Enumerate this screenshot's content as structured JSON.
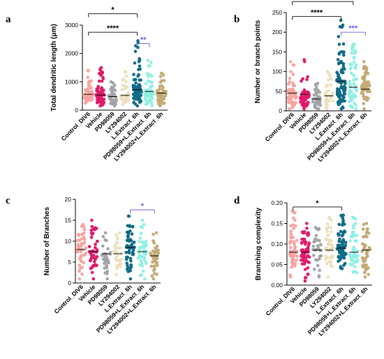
{
  "colors": {
    "Control_DIV6": "#f6a5a0",
    "Vehicle": "#e0196a",
    "PD98059": "#a3a4a8",
    "LY294002": "#ece0bc",
    "L.Extract_6h": "#0f6b87",
    "PD98059+L.Extract_6h": "#8ff0e2",
    "LY294002+L.Extract_6h": "#c4aa76",
    "sig_black": "#000000",
    "sig_blue": "#6a5ae8"
  },
  "chart_data": [
    {
      "panel": "a",
      "type": "scatter",
      "ylabel": "Total dendritic length (μm)",
      "ylim": [
        0,
        3000
      ],
      "yticks": [
        0,
        1000,
        2000,
        3000
      ],
      "categories": [
        "Control_DIV6",
        "Vehicle",
        "PD98059",
        "LY294002",
        "L.Extract_6h",
        "PD98059+L.Extract_6h",
        "LY294002+L.Extract_6h"
      ],
      "series": [
        {
          "median": 560,
          "min": 250,
          "max": 1400,
          "n": 55
        },
        {
          "median": 530,
          "min": 150,
          "max": 1500,
          "n": 60
        },
        {
          "median": 480,
          "min": 150,
          "max": 1000,
          "n": 35
        },
        {
          "median": 520,
          "min": 200,
          "max": 1350,
          "n": 35
        },
        {
          "median": 720,
          "min": 150,
          "max": 2450,
          "n": 90
        },
        {
          "median": 660,
          "min": 150,
          "max": 1750,
          "n": 70
        },
        {
          "median": 600,
          "min": 150,
          "max": 1300,
          "n": 55
        }
      ],
      "annotations": [
        {
          "text": "*",
          "from": 0,
          "to": 4,
          "level": 3400,
          "color": "sig_black"
        },
        {
          "text": "****",
          "from": 0,
          "to": 4,
          "level": 2750,
          "color": "sig_black"
        },
        {
          "text": "**",
          "from": 4,
          "to": 5,
          "level": 2350,
          "color": "sig_blue"
        }
      ]
    },
    {
      "panel": "b",
      "type": "scatter",
      "ylabel": "Number or branch points",
      "ylim": [
        0,
        250
      ],
      "yticks": [
        0,
        50,
        100,
        150,
        200,
        250
      ],
      "categories": [
        "Control_DIV6",
        "Vehicle",
        "PD98059",
        "LY294002",
        "L.Extract_6h",
        "PD98059+L.Extract_6h",
        "LY294002+L.Extract_6h"
      ],
      "series": [
        {
          "median": 45,
          "min": 5,
          "max": 125,
          "n": 60
        },
        {
          "median": 42,
          "min": 5,
          "max": 130,
          "n": 65
        },
        {
          "median": 30,
          "min": 5,
          "max": 70,
          "n": 35
        },
        {
          "median": 38,
          "min": 5,
          "max": 100,
          "n": 35
        },
        {
          "median": 75,
          "min": 5,
          "max": 230,
          "n": 95
        },
        {
          "median": 60,
          "min": 5,
          "max": 170,
          "n": 70
        },
        {
          "median": 55,
          "min": 5,
          "max": 125,
          "n": 55
        }
      ],
      "annotations": [
        {
          "text": "*",
          "from": 0,
          "to": 5,
          "level": 278,
          "color": "sig_black"
        },
        {
          "text": "****",
          "from": 0,
          "to": 4,
          "level": 240,
          "color": "sig_black"
        },
        {
          "text": "***",
          "from": 4,
          "to": 6,
          "level": 200,
          "color": "sig_blue"
        }
      ]
    },
    {
      "panel": "c",
      "type": "scatter",
      "ylabel": "Number of Branches",
      "ylim": [
        0,
        20
      ],
      "yticks": [
        0,
        5,
        10,
        15,
        20
      ],
      "categories": [
        "Control_DIV6",
        "Vehicle",
        "PD98059",
        "LY294002",
        "L.Extract_6h",
        "PD98059+L.Extract_6h",
        "LY294002+L.Extract_6h"
      ],
      "series": [
        {
          "median": 8,
          "min": 1,
          "max": 14,
          "n": 45
        },
        {
          "median": 7.5,
          "min": 1,
          "max": 15,
          "n": 50
        },
        {
          "median": 7,
          "min": 1,
          "max": 12,
          "n": 30
        },
        {
          "median": 7,
          "min": 2,
          "max": 12,
          "n": 30
        },
        {
          "median": 8.5,
          "min": 1,
          "max": 16,
          "n": 60
        },
        {
          "median": 7.5,
          "min": 1,
          "max": 15,
          "n": 45
        },
        {
          "median": 6.5,
          "min": 1,
          "max": 12,
          "n": 40
        }
      ],
      "annotations": [
        {
          "text": "*",
          "from": 4,
          "to": 6,
          "level": 17.5,
          "color": "sig_blue"
        }
      ]
    },
    {
      "panel": "d",
      "type": "scatter",
      "ylabel": "Branching complexity",
      "ylim": [
        0,
        0.2
      ],
      "yticks": [
        0,
        0.05,
        0.1,
        0.15,
        0.2
      ],
      "yticklabels": [
        "0.00",
        "0.05",
        "0.10",
        "0.15",
        "0.20"
      ],
      "categories": [
        "Control_DIV6",
        "Vehicle",
        "PD98059",
        "LY294002",
        "L.Extract_6h",
        "PD98059+L.Extract_6h",
        "LY294002+L.Extract_6h"
      ],
      "series": [
        {
          "median": 0.08,
          "min": 0.02,
          "max": 0.18,
          "n": 60
        },
        {
          "median": 0.08,
          "min": 0.01,
          "max": 0.15,
          "n": 60
        },
        {
          "median": 0.085,
          "min": 0.02,
          "max": 0.14,
          "n": 35
        },
        {
          "median": 0.085,
          "min": 0.02,
          "max": 0.165,
          "n": 40
        },
        {
          "median": 0.09,
          "min": 0.04,
          "max": 0.17,
          "n": 70
        },
        {
          "median": 0.08,
          "min": 0.03,
          "max": 0.165,
          "n": 50
        },
        {
          "median": 0.085,
          "min": 0.02,
          "max": 0.15,
          "n": 45
        }
      ],
      "annotations": [
        {
          "text": "*",
          "from": 0,
          "to": 4,
          "level": 0.19,
          "color": "sig_black"
        }
      ]
    }
  ]
}
